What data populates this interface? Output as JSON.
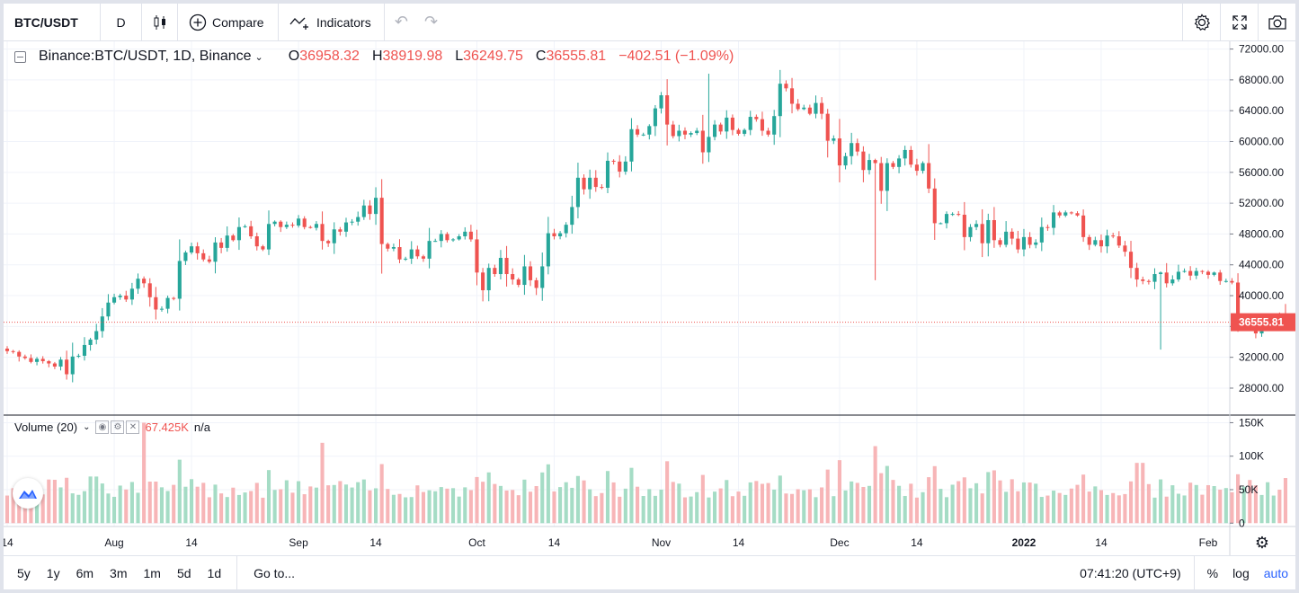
{
  "toolbar": {
    "symbol": "BTC/USDT",
    "interval": "D",
    "compare_label": "Compare",
    "indicators_label": "Indicators"
  },
  "legend": {
    "title": "Binance:BTC/USDT, 1D, Binance",
    "open_label": "O",
    "open": "36958.32",
    "high_label": "H",
    "high": "38919.98",
    "low_label": "L",
    "low": "36249.75",
    "close_label": "C",
    "close": "36555.81",
    "change": "−402.51 (−1.09%)"
  },
  "volume_legend": {
    "title": "Volume (20)",
    "value": "67.425K",
    "na": "n/a"
  },
  "colors": {
    "up": "#26a69a",
    "down": "#ef5350",
    "vol_up": "#a5dcc5",
    "vol_down": "#f7b5b7",
    "grid": "#f0f3fa",
    "accent": "#2962ff"
  },
  "chart_data": {
    "type": "candlestick",
    "title": "Binance:BTC/USDT, 1D, Binance",
    "price_axis": {
      "ticks": [
        28000,
        32000,
        36000,
        40000,
        44000,
        48000,
        52000,
        56000,
        60000,
        64000,
        68000,
        72000
      ],
      "tick_labels": [
        "28000.00",
        "32000.00",
        "36000.00",
        "40000.00",
        "44000.00",
        "48000.00",
        "52000.00",
        "56000.00",
        "60000.00",
        "64000.00",
        "68000.00",
        "72000.00"
      ],
      "ylim": [
        24500,
        73000
      ]
    },
    "volume_axis": {
      "ticks": [
        0,
        50000,
        100000,
        150000
      ],
      "tick_labels": [
        "0",
        "50K",
        "100K",
        "150K"
      ],
      "ylim": [
        -5000,
        160000
      ]
    },
    "last_price_label": "36555.81",
    "time_axis": {
      "labels": [
        "14",
        "Aug",
        "14",
        "Sep",
        "14",
        "Oct",
        "14",
        "Nov",
        "14",
        "Dec",
        "14",
        "2022",
        "14",
        "Feb"
      ],
      "label_dates": [
        "2021-07-14",
        "2021-08-01",
        "2021-08-14",
        "2021-09-01",
        "2021-09-14",
        "2021-10-01",
        "2021-10-14",
        "2021-11-01",
        "2021-11-14",
        "2021-12-01",
        "2021-12-14",
        "2022-01-01",
        "2022-01-14",
        "2022-02-01"
      ],
      "range": [
        "2021-07-14",
        "2022-02-01"
      ]
    },
    "start_date": "2021-07-14",
    "closes": [
      32800,
      32700,
      32100,
      31900,
      31400,
      31800,
      31500,
      31200,
      30800,
      31700,
      29800,
      32100,
      32200,
      33600,
      34300,
      35400,
      37300,
      39100,
      39800,
      40000,
      39500,
      40900,
      42200,
      41600,
      39800,
      38200,
      38300,
      39700,
      39600,
      44500,
      45600,
      46400,
      45500,
      44700,
      44400,
      46900,
      46200,
      47800,
      47200,
      48900,
      49000,
      47700,
      46400,
      46000,
      49300,
      49600,
      48900,
      49200,
      49100,
      50000,
      48900,
      48800,
      49300,
      47100,
      46800,
      48600,
      48300,
      49500,
      49600,
      50200,
      51700,
      50600,
      52700,
      46700,
      46100,
      46300,
      44700,
      44800,
      46000,
      45100,
      44800,
      47100,
      47100,
      48000,
      47200,
      47300,
      47700,
      48300,
      47300,
      43000,
      40700,
      43600,
      42800,
      44900,
      42800,
      42100,
      41400,
      43800,
      42000,
      41000,
      43800,
      48100,
      47700,
      48100,
      49200,
      51500,
      55300,
      53800,
      55300,
      54100,
      54000,
      57500,
      57400,
      56100,
      57400,
      61600,
      60900,
      60900,
      62000,
      64300,
      66000,
      62200,
      60700,
      61400,
      60900,
      61100,
      61400,
      58600,
      60600,
      62200,
      61300,
      63100,
      61500,
      61000,
      61500,
      63200,
      62900,
      61400,
      60900,
      63300,
      67500,
      66900,
      64900,
      64200,
      64400,
      63600,
      65000,
      63600,
      60100,
      60400,
      56900,
      58100,
      59800,
      58700,
      56300,
      57600,
      57200,
      53600,
      57200,
      56700,
      57800,
      58900,
      57000,
      56200,
      57200,
      53900,
      49400,
      49400,
      50600,
      50600,
      50500,
      47600,
      48900,
      49300,
      46800,
      49800,
      47200,
      46600,
      48300,
      47400,
      46000,
      47600,
      46600,
      46900,
      48900,
      48800,
      50800,
      50400,
      50800,
      50700,
      50400,
      47600,
      46600,
      47200,
      46400,
      47800,
      47700,
      46500,
      45700,
      43600,
      42100,
      41900,
      41800,
      42800,
      43000,
      41600,
      42100,
      43100,
      43200,
      42600,
      43200,
      43100,
      42700,
      43000,
      41900,
      41900,
      41700,
      36500,
      37000,
      36400,
      35100,
      36300,
      36600,
      37400,
      36955,
      36555
    ],
    "highs_note": "wick extremes approximated from chart",
    "notable_points": {
      "high": 68800,
      "low": 29300,
      "dec4_low": 42000,
      "jan24_low": 33000
    }
  },
  "bottom": {
    "ranges": [
      "5y",
      "1y",
      "6m",
      "3m",
      "1m",
      "5d",
      "1d"
    ],
    "goto_label": "Go to...",
    "clock": "07:41:20 (UTC+9)",
    "percent_label": "%",
    "log_label": "log",
    "auto_label": "auto"
  }
}
